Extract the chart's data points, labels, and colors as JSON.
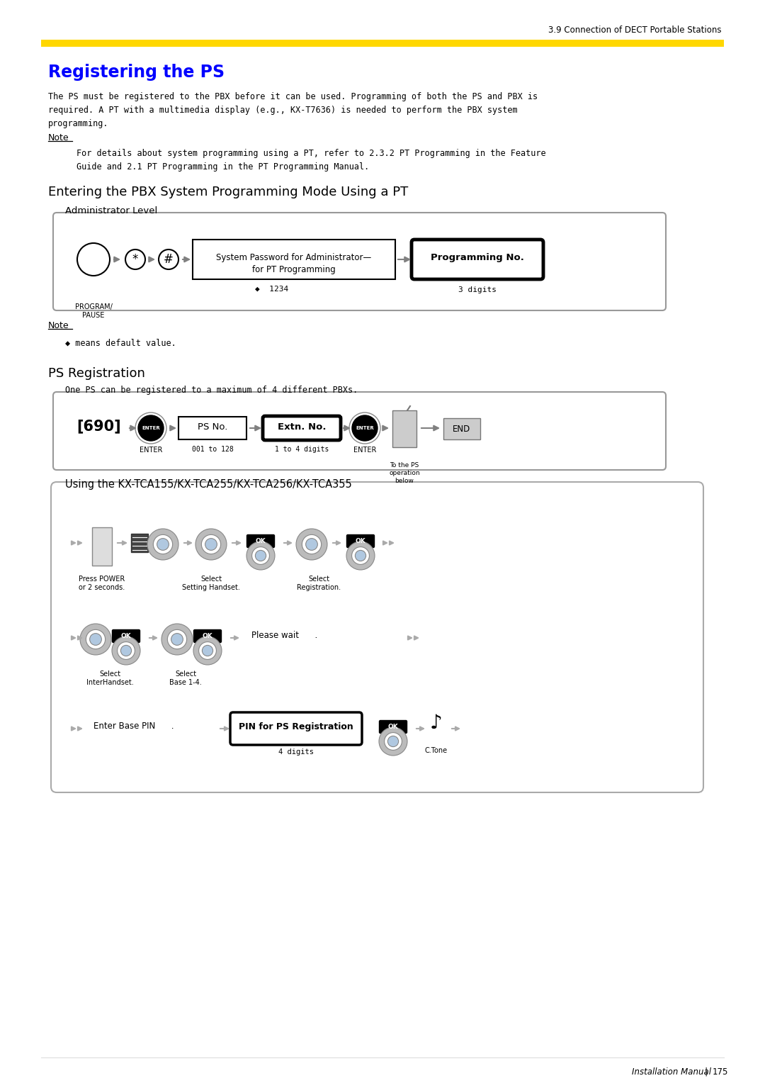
{
  "page_title_right": "3.9 Connection of DECT Portable Stations",
  "section_title": "Registering the PS",
  "section_title_color": "#0000FF",
  "yellow_bar_color": "#FFD700",
  "note_label": "Note",
  "subsection1_title": "Entering the PBX System Programming Mode Using a PT",
  "admin_level": "Administrator Level",
  "box1_label1": "System Password for Administrator—",
  "box1_label2": "for PT Programming",
  "box1_default": "◆  1234",
  "box2_label": "Programming No.",
  "box2_sub": "3 digits",
  "prog_pause": "PROGRAM/\nPAUSE",
  "note2_text": "◆ means default value.",
  "subsection2_title": "PS Registration",
  "ps_reg_body": "One PS can be registered to a maximum of 4 different PBXs.",
  "flow_690": "[690]",
  "flow_ps_no": "PS No.",
  "flow_ps_no_sub": "001 to 128",
  "flow_extn_no": "Extn. No.",
  "flow_extn_sub": "1 to 4 digits",
  "flow_enter": "ENTER",
  "flow_to_ps": "To the PS\noperation\nbelow",
  "flow_end": "END",
  "using_label": "Using the KX-TCA155/KX-TCA255/KX-TCA256/KX-TCA355",
  "press_power": "Press POWER\nor 2 seconds.",
  "select_setting": "Select\nSetting Handset.",
  "select_reg": "Select\nRegistration.",
  "select_interhandset": "Select\nInterHandset.",
  "select_base": "Select\nBase 1-4.",
  "please_wait": "Please wait      .",
  "enter_base_pin": "Enter Base PIN      .",
  "pin_label": "PIN for PS Registration",
  "pin_sub": "4 digits",
  "c_tone": "C.Tone",
  "page_footer": "Installation Manual",
  "page_number": "175",
  "bg_color": "#FFFFFF",
  "body_lines": [
    "The PS must be registered to the PBX before it can be used. Programming of both the PS and PBX is",
    "required. A PT with a multimedia display (e.g., KX-T7636) is needed to perform the PBX system",
    "programming."
  ],
  "note_lines": [
    "For details about system programming using a PT, refer to 2.3.2 PT Programming in the Feature",
    "Guide and 2.1 PT Programming in the PT Programming Manual."
  ]
}
